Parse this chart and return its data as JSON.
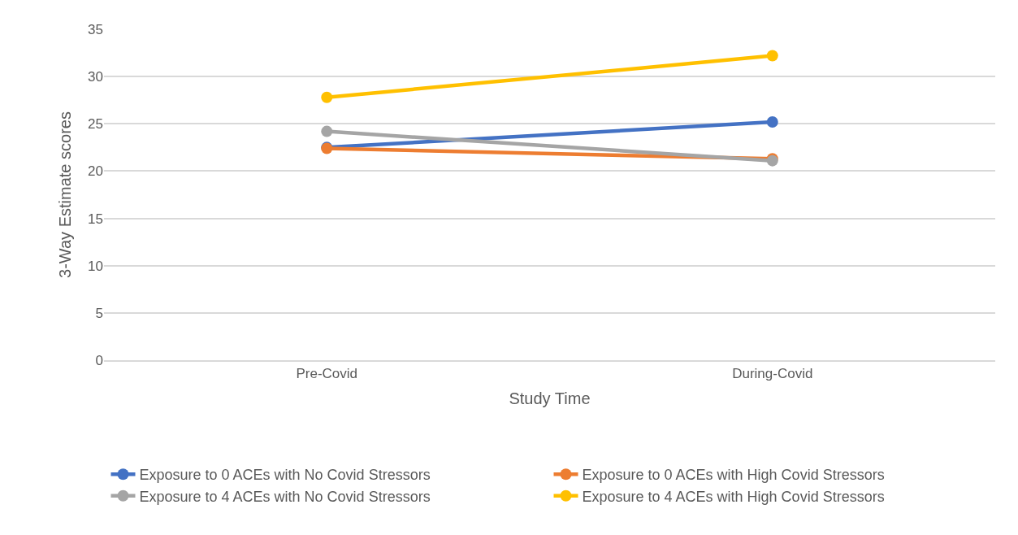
{
  "chart_data": {
    "type": "line",
    "xlabel": "Study Time",
    "ylabel": "3-Way Estimate scores",
    "categories": [
      "Pre-Covid",
      "During-Covid"
    ],
    "series": [
      {
        "name": "Exposure to 0 ACEs with No Covid Stressors",
        "color": "#4472c4",
        "values": [
          22.5,
          25.2
        ]
      },
      {
        "name": "Exposure to 0 ACEs with High Covid Stressors",
        "color": "#ed7d31",
        "values": [
          22.4,
          21.3
        ]
      },
      {
        "name": "Exposure to 4 ACEs with No Covid Stressors",
        "color": "#a5a5a5",
        "values": [
          24.2,
          21.1
        ]
      },
      {
        "name": "Exposure to 4 ACEs with High Covid Stressors",
        "color": "#ffc000",
        "values": [
          27.8,
          32.2
        ]
      }
    ],
    "ylim": [
      0,
      35
    ],
    "yticks": [
      0,
      5,
      10,
      15,
      20,
      25,
      30,
      35
    ],
    "grid": "y",
    "legend": "bottom",
    "marker": "circle",
    "line_style": "solid"
  }
}
